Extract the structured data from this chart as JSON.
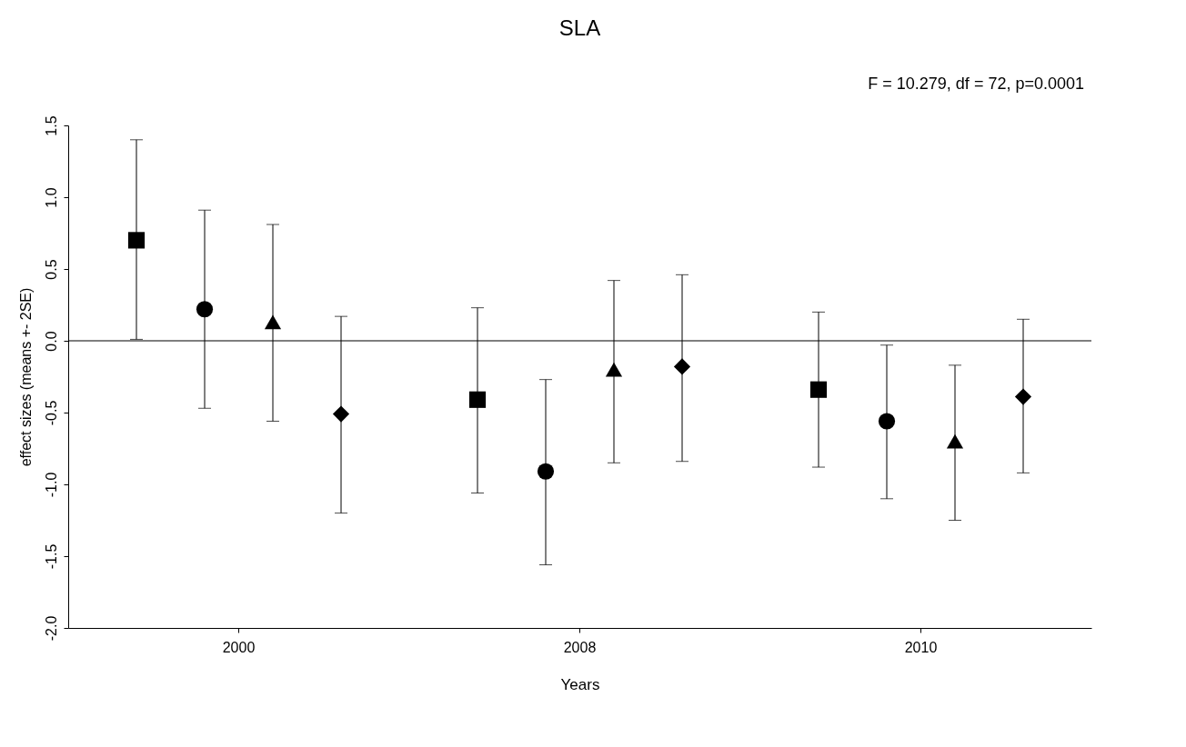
{
  "chart_data": {
    "type": "scatter",
    "title": "SLA",
    "xlabel": "Years",
    "ylabel": "effect sizes (means +- 2SE)",
    "annotations": [
      "F = 10.279, df = 72, p=0.0001"
    ],
    "categories": [
      "2000",
      "2008",
      "2010"
    ],
    "series": [
      {
        "color": "#000000",
        "marker": "square",
        "values": [
          0.7,
          -0.41,
          -0.34
        ],
        "errors": [
          [
            0.01,
            1.4
          ],
          [
            -1.06,
            0.23
          ],
          [
            -0.88,
            0.2
          ]
        ]
      },
      {
        "color": "#000000",
        "marker": "circle",
        "values": [
          0.22,
          -0.91,
          -0.56
        ],
        "errors": [
          [
            -0.47,
            0.91
          ],
          [
            -1.56,
            -0.27
          ],
          [
            -1.1,
            -0.03
          ]
        ]
      },
      {
        "color": "#000000",
        "marker": "triangle",
        "values": [
          0.13,
          -0.2,
          -0.7
        ],
        "errors": [
          [
            -0.56,
            0.81
          ],
          [
            -0.85,
            0.42
          ],
          [
            -1.25,
            -0.17
          ]
        ]
      },
      {
        "color": "#000000",
        "marker": "diamond",
        "values": [
          -0.51,
          -0.18,
          -0.39
        ],
        "errors": [
          [
            -1.2,
            0.17
          ],
          [
            -0.84,
            0.46
          ],
          [
            -0.92,
            0.15
          ]
        ]
      }
    ],
    "ylim": [
      -2.0,
      1.5
    ],
    "yticks": [
      {
        "value": -2.0,
        "label": "-2.0"
      },
      {
        "value": -1.5,
        "label": "-1.5"
      },
      {
        "value": -1.0,
        "label": "-1.0"
      },
      {
        "value": -0.5,
        "label": "-0.5"
      },
      {
        "value": 0.0,
        "label": "0.0"
      },
      {
        "value": 0.5,
        "label": "0.5"
      },
      {
        "value": 1.0,
        "label": "1.0"
      },
      {
        "value": 1.5,
        "label": "1.5"
      }
    ],
    "ref_lines": [
      {
        "axis": "y",
        "value": 0,
        "color": "#000000"
      }
    ],
    "grid": false
  }
}
